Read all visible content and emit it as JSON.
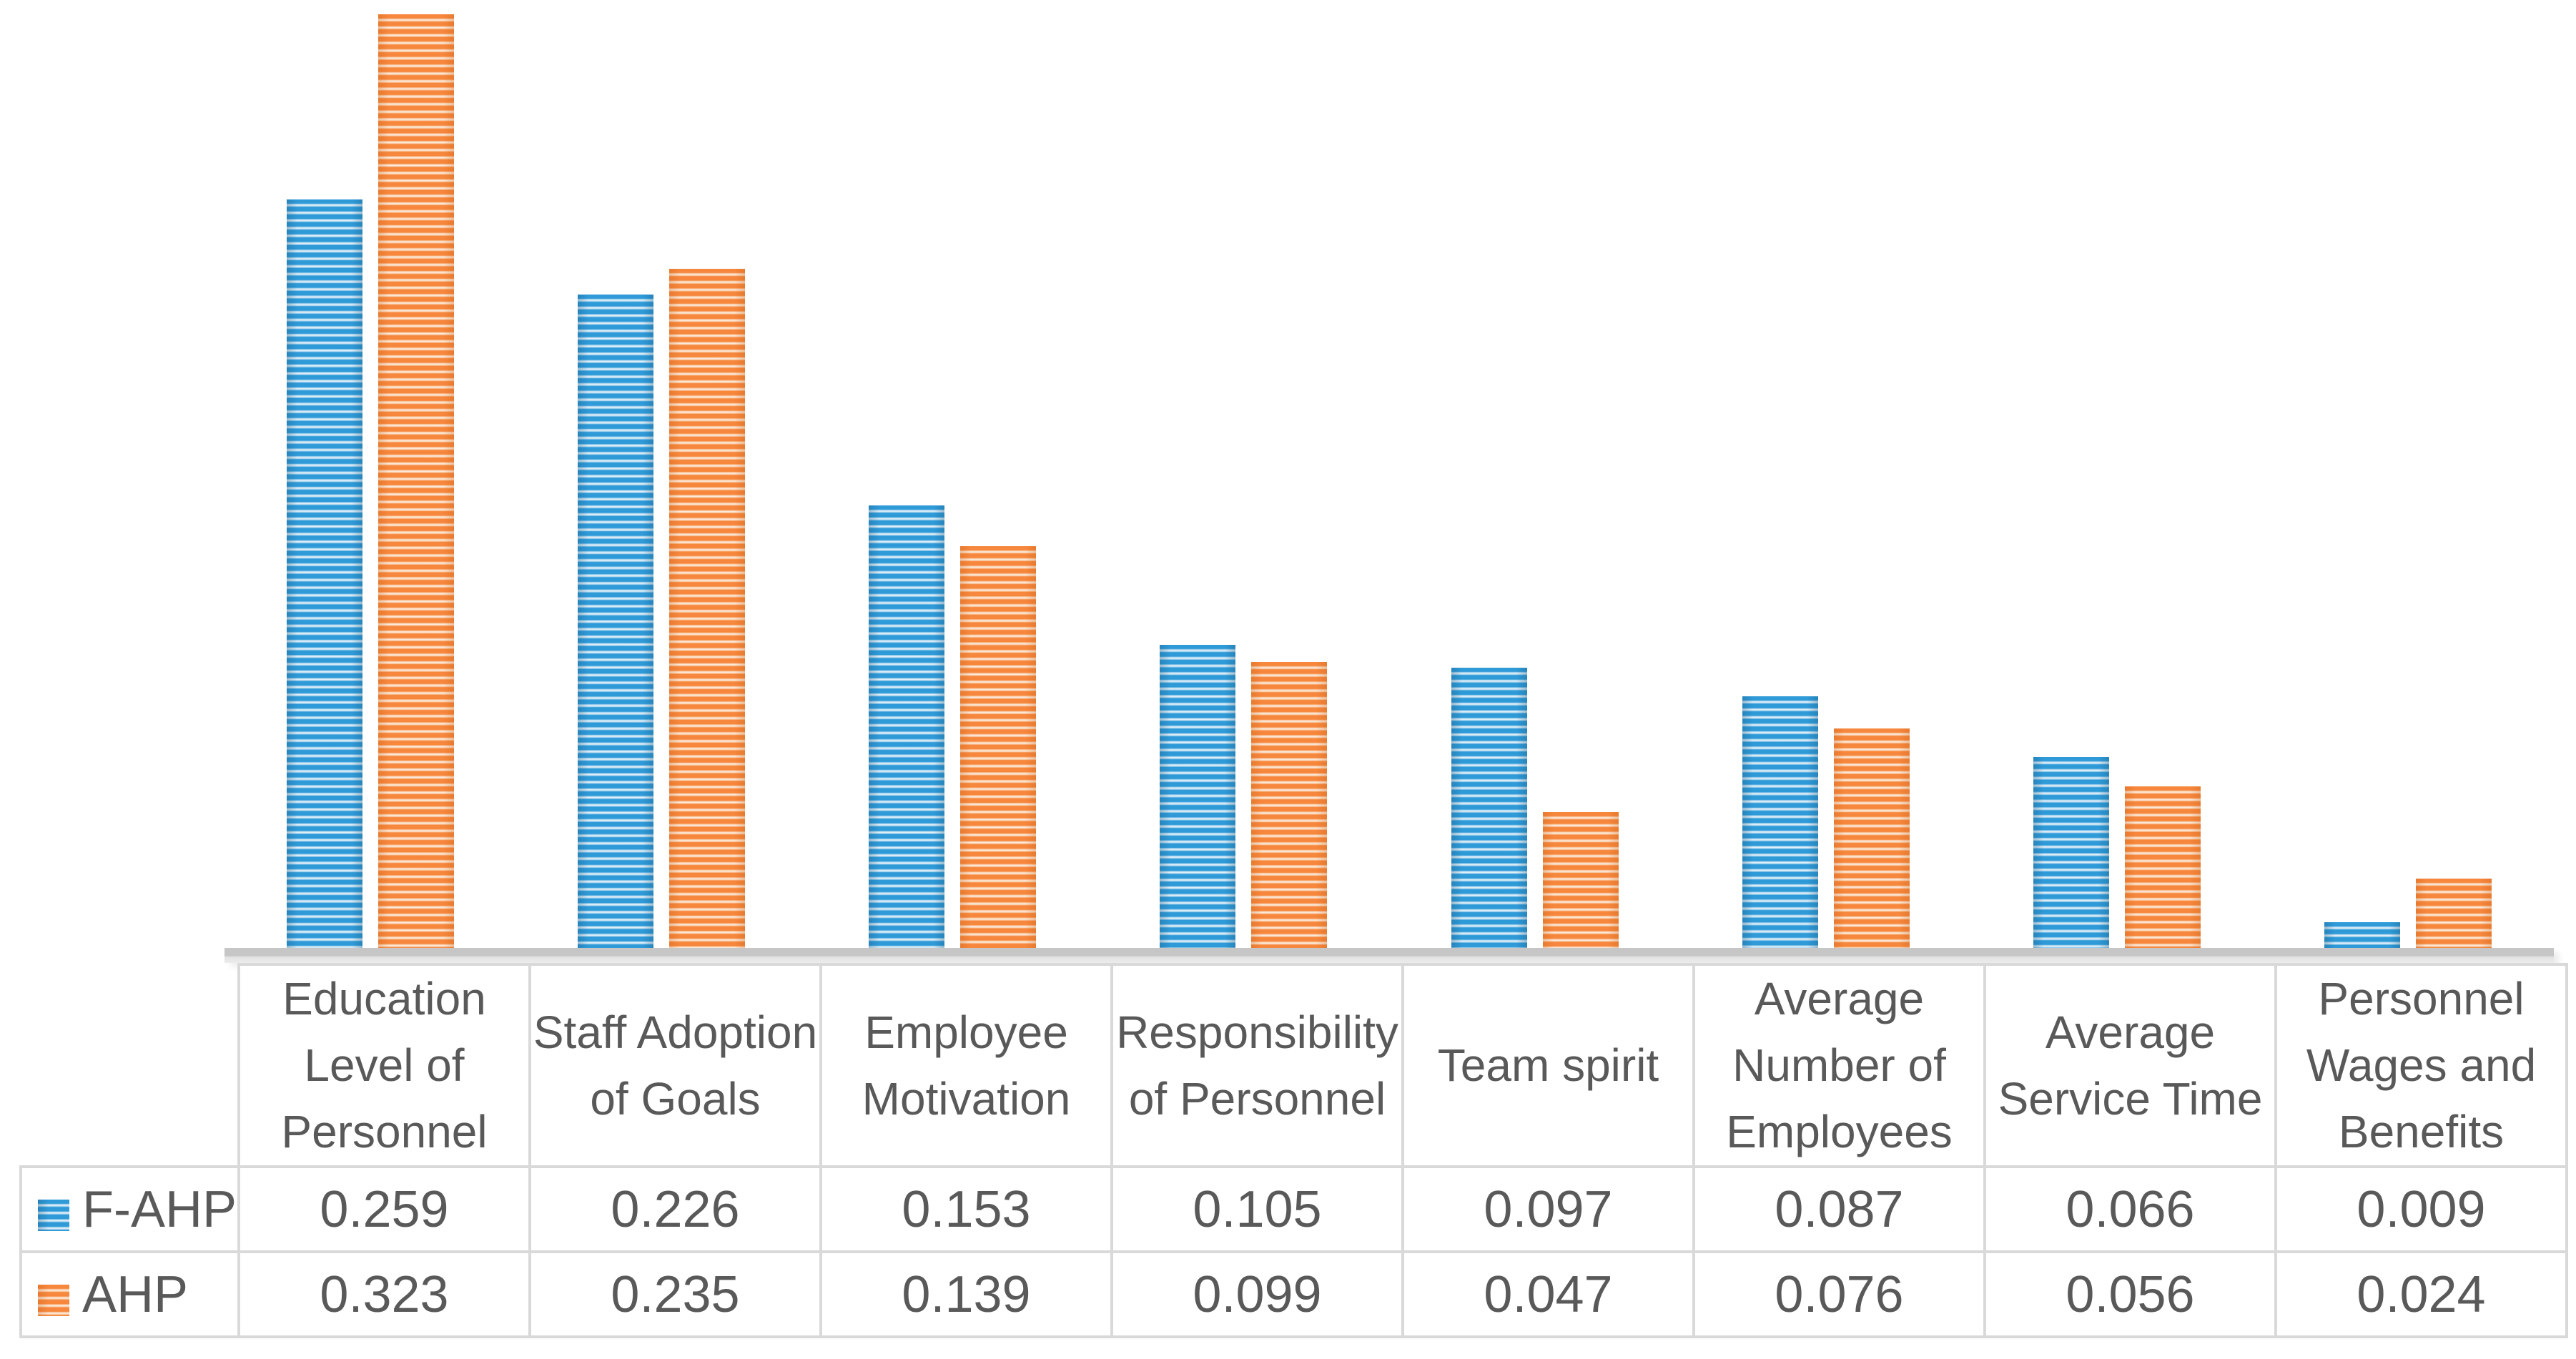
{
  "chart_data": {
    "type": "bar",
    "categories": [
      "Education Level of Personnel",
      "Staff Adoption of Goals",
      "Employee Motivation",
      "Responsibility of Personnel",
      "Team spirit",
      "Average Number of Employees",
      "Average Service Time",
      "Personnel Wages and Benefits"
    ],
    "series": [
      {
        "name": "F-AHP",
        "values": [
          0.259,
          0.226,
          0.153,
          0.105,
          0.097,
          0.087,
          0.066,
          0.009
        ],
        "color": "#2E9AD8",
        "pattern": "horizontal-stripes"
      },
      {
        "name": "AHP",
        "values": [
          0.323,
          0.235,
          0.139,
          0.099,
          0.047,
          0.076,
          0.056,
          0.024
        ],
        "color": "#F6873D",
        "pattern": "horizontal-stripes"
      }
    ],
    "title": "",
    "xlabel": "",
    "ylabel": "",
    "ylim": [
      0,
      0.328
    ],
    "grid": false,
    "axis_labels_visible": false,
    "legend_position": "left-of-data-table-rows",
    "value_format": "3-decimals"
  },
  "colors": {
    "f_ahp_accent": "#2E9AD8",
    "ahp_accent": "#F6873D",
    "table_border": "#D9D9D9",
    "axis_strip": "#C6C6C6",
    "text": "#595959",
    "background": "#FFFFFF"
  }
}
